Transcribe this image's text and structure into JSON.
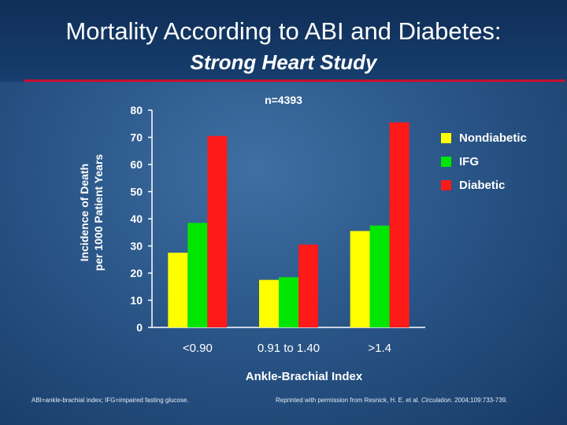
{
  "slide": {
    "title": "Mortality According to ABI and Diabetes:",
    "subtitle": "Strong Heart Study",
    "footnote_left": "ABI=ankle-brachial index; IFG=impaired fasting glucose.",
    "footnote_right_prefix": "Reprinted with permission from Resnick, H. E. et al. ",
    "footnote_right_journal": "Circulation",
    "footnote_right_suffix": ". 2004;109:733-739.",
    "accent_color": "#c8102e"
  },
  "chart_data": {
    "type": "bar",
    "title": "",
    "annotation": "n=4393",
    "xlabel": "Ankle-Brachial Index",
    "ylabel_line1": "Incidence of Death",
    "ylabel_line2": "per 1000 Patient Years",
    "ylim": [
      0,
      80
    ],
    "yticks": [
      0,
      10,
      20,
      30,
      40,
      50,
      60,
      70,
      80
    ],
    "categories": [
      "<0.90",
      "0.91  to 1.40",
      ">1.4"
    ],
    "series": [
      {
        "name": "Nondiabetic",
        "color": "#ffff00",
        "values": [
          27.5,
          17.5,
          35.5
        ]
      },
      {
        "name": "IFG",
        "color": "#00e600",
        "values": [
          38.5,
          18.5,
          37.5
        ]
      },
      {
        "name": "Diabetic",
        "color": "#ff1a1a",
        "values": [
          70.5,
          30.5,
          75.5
        ]
      }
    ],
    "legend_position": "top-right",
    "grid": false
  }
}
